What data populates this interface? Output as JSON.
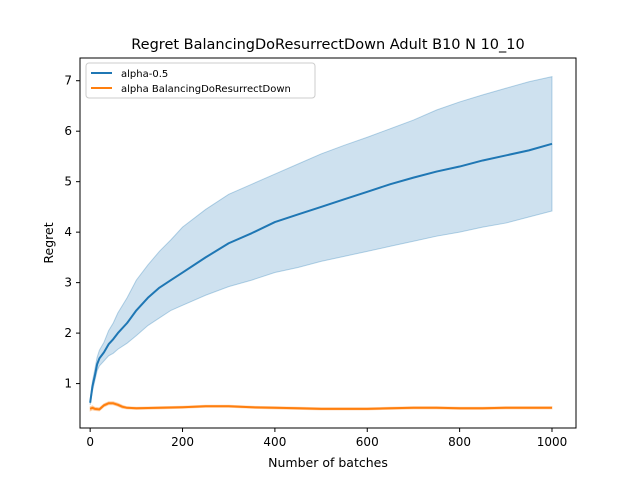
{
  "chart_data": {
    "type": "line",
    "title": "Regret BalancingDoResurrectDown Adult B10 N 10_10",
    "xlabel": "Number of batches",
    "ylabel": "Regret",
    "xlim": [
      -22,
      1052
    ],
    "ylim": [
      0.12,
      7.45
    ],
    "x_ticks": [
      0,
      200,
      400,
      600,
      800,
      1000
    ],
    "y_ticks": [
      1,
      2,
      3,
      4,
      5,
      6,
      7
    ],
    "grid": false,
    "legend_position": "top-left",
    "series": [
      {
        "name": "alpha-0.5",
        "color": "#1f77b4",
        "band_color": "#1f77b4",
        "x": [
          0,
          5,
          10,
          15,
          20,
          30,
          40,
          50,
          60,
          80,
          100,
          125,
          150,
          175,
          200,
          250,
          300,
          350,
          400,
          450,
          500,
          550,
          600,
          650,
          700,
          750,
          800,
          850,
          900,
          950,
          1000
        ],
        "values": [
          0.62,
          0.95,
          1.15,
          1.38,
          1.5,
          1.62,
          1.78,
          1.88,
          2.0,
          2.2,
          2.45,
          2.7,
          2.9,
          3.05,
          3.2,
          3.5,
          3.78,
          3.98,
          4.2,
          4.35,
          4.5,
          4.65,
          4.8,
          4.95,
          5.08,
          5.2,
          5.3,
          5.42,
          5.52,
          5.62,
          5.75
        ],
        "lower": [
          0.58,
          0.85,
          1.05,
          1.25,
          1.35,
          1.45,
          1.55,
          1.6,
          1.68,
          1.8,
          1.95,
          2.15,
          2.3,
          2.45,
          2.55,
          2.75,
          2.92,
          3.05,
          3.2,
          3.3,
          3.42,
          3.52,
          3.62,
          3.72,
          3.82,
          3.92,
          4.0,
          4.1,
          4.18,
          4.3,
          4.42
        ],
        "upper": [
          0.68,
          1.05,
          1.28,
          1.52,
          1.66,
          1.82,
          2.05,
          2.2,
          2.4,
          2.7,
          3.05,
          3.35,
          3.62,
          3.85,
          4.1,
          4.45,
          4.75,
          4.95,
          5.15,
          5.35,
          5.55,
          5.72,
          5.88,
          6.05,
          6.22,
          6.42,
          6.58,
          6.72,
          6.85,
          6.98,
          7.08
        ]
      },
      {
        "name": "alpha BalancingDoResurrectDown",
        "color": "#ff7f0e",
        "band_color": "#ff7f0e",
        "x": [
          0,
          5,
          10,
          20,
          30,
          40,
          50,
          60,
          70,
          80,
          100,
          150,
          200,
          250,
          300,
          350,
          400,
          450,
          500,
          550,
          600,
          650,
          700,
          750,
          800,
          850,
          900,
          950,
          1000
        ],
        "values": [
          0.5,
          0.52,
          0.5,
          0.49,
          0.57,
          0.61,
          0.61,
          0.58,
          0.54,
          0.52,
          0.51,
          0.52,
          0.53,
          0.55,
          0.55,
          0.53,
          0.52,
          0.51,
          0.5,
          0.5,
          0.5,
          0.51,
          0.52,
          0.52,
          0.51,
          0.51,
          0.52,
          0.52,
          0.52
        ],
        "lower": [
          0.46,
          0.48,
          0.47,
          0.46,
          0.54,
          0.58,
          0.58,
          0.55,
          0.51,
          0.5,
          0.49,
          0.5,
          0.51,
          0.53,
          0.53,
          0.51,
          0.5,
          0.49,
          0.48,
          0.48,
          0.48,
          0.49,
          0.5,
          0.5,
          0.49,
          0.49,
          0.5,
          0.5,
          0.5
        ],
        "upper": [
          0.54,
          0.56,
          0.53,
          0.52,
          0.6,
          0.64,
          0.64,
          0.61,
          0.57,
          0.54,
          0.53,
          0.54,
          0.55,
          0.57,
          0.57,
          0.55,
          0.54,
          0.53,
          0.52,
          0.52,
          0.52,
          0.53,
          0.54,
          0.54,
          0.53,
          0.53,
          0.54,
          0.54,
          0.54
        ]
      }
    ]
  }
}
